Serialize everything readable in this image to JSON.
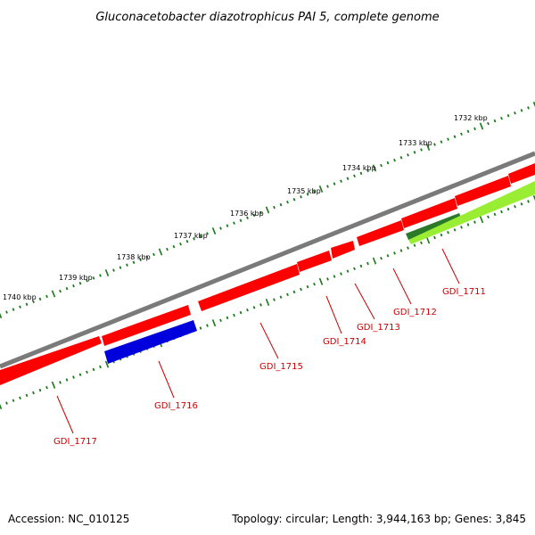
{
  "title": "Gluconacetobacter diazotrophicus PAI 5, complete genome",
  "accession": "Accession: NC_010125",
  "stats": "Topology: circular; Length: 3,944,163 bp; Genes: 3,845",
  "colors": {
    "backbone": "#7a7a7a",
    "forward_gene": "#ff0000",
    "reverse_gene": "#ff0000",
    "rna_gene": "#0000dd",
    "other_gene": "#99ee33",
    "other_gene_dark": "#2a7a2a",
    "tick": "#1a7a1a",
    "label": "#cc0000"
  },
  "ruler_labels": [
    "1740 kbp",
    "1739 kbp",
    "1738 kbp",
    "1737 kbp",
    "1736 kbp",
    "1735 kbp",
    "1734 kbp",
    "1733 kbp",
    "1732 kbp"
  ],
  "gene_labels": [
    "GDI_1711",
    "GDI_1712",
    "GDI_1713",
    "GDI_1714",
    "GDI_1715",
    "GDI_1716",
    "GDI_1717"
  ]
}
